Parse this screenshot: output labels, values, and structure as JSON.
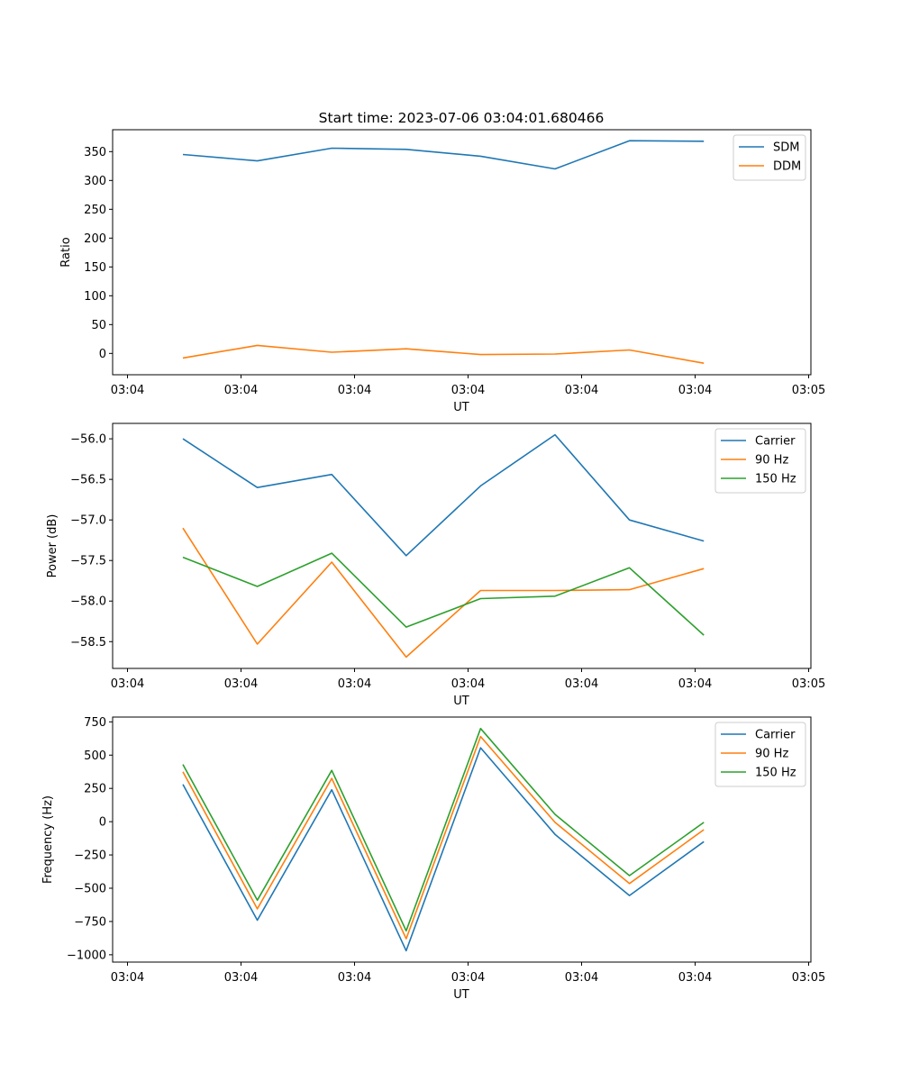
{
  "figure_title": "Start time: 2023-07-06 03:04:01.680466",
  "x_tick_labels": [
    "03:04",
    "03:04",
    "03:04",
    "03:04",
    "03:04",
    "03:04",
    "03:05"
  ],
  "colors": {
    "blue": "#1f77b4",
    "orange": "#ff7f0e",
    "green": "#2ca02c"
  },
  "chart_data": [
    {
      "type": "line",
      "xlabel": "UT",
      "ylabel": "Ratio",
      "ylim": [
        -37,
        388
      ],
      "yticks": [
        0,
        50,
        100,
        150,
        200,
        250,
        300,
        350
      ],
      "ytick_labels": [
        "0",
        "50",
        "100",
        "150",
        "200",
        "250",
        "300",
        "350"
      ],
      "legend_position": "upper-right",
      "x": [
        1,
        2,
        3,
        4,
        5,
        6,
        7,
        8
      ],
      "series": [
        {
          "name": "SDM",
          "color": "#1f77b4",
          "values": [
            345,
            334,
            356,
            354,
            342,
            320,
            369,
            368
          ]
        },
        {
          "name": "DDM",
          "color": "#ff7f0e",
          "values": [
            -8,
            14,
            2,
            8,
            -2,
            -1,
            6,
            -17
          ]
        }
      ]
    },
    {
      "type": "line",
      "xlabel": "UT",
      "ylabel": "Power (dB)",
      "ylim": [
        -58.83,
        -55.81
      ],
      "yticks": [
        -58.5,
        -58.0,
        -57.5,
        -57.0,
        -56.5,
        -56.0
      ],
      "ytick_labels": [
        "−58.5",
        "−58.0",
        "−57.5",
        "−57.0",
        "−56.5",
        "−56.0"
      ],
      "legend_position": "upper-right",
      "x": [
        1,
        2,
        3,
        4,
        5,
        6,
        7,
        8
      ],
      "series": [
        {
          "name": "Carrier",
          "color": "#1f77b4",
          "values": [
            -56.0,
            -56.6,
            -56.44,
            -57.44,
            -56.58,
            -55.95,
            -57.0,
            -57.26
          ]
        },
        {
          "name": "90 Hz",
          "color": "#ff7f0e",
          "values": [
            -57.1,
            -58.53,
            -57.52,
            -58.69,
            -57.87,
            -57.87,
            -57.86,
            -57.6
          ]
        },
        {
          "name": "150 Hz",
          "color": "#2ca02c",
          "values": [
            -57.46,
            -57.82,
            -57.41,
            -58.32,
            -57.97,
            -57.94,
            -57.59,
            -58.42
          ]
        }
      ]
    },
    {
      "type": "line",
      "xlabel": "UT",
      "ylabel": "Frequency (Hz)",
      "ylim": [
        -1055,
        786
      ],
      "yticks": [
        -1000,
        -750,
        -500,
        -250,
        0,
        250,
        500,
        750
      ],
      "ytick_labels": [
        "−1000",
        "−750",
        "−500",
        "−250",
        "0",
        "250",
        "500",
        "750"
      ],
      "legend_position": "upper-right",
      "x": [
        1,
        2,
        3,
        4,
        5,
        6,
        7,
        8
      ],
      "series": [
        {
          "name": "Carrier",
          "color": "#1f77b4",
          "values": [
            280,
            -740,
            240,
            -970,
            555,
            -95,
            -555,
            -150
          ]
        },
        {
          "name": "90 Hz",
          "color": "#ff7f0e",
          "values": [
            375,
            -655,
            325,
            -880,
            640,
            -5,
            -465,
            -60
          ]
        },
        {
          "name": "150 Hz",
          "color": "#2ca02c",
          "values": [
            430,
            -590,
            385,
            -820,
            700,
            55,
            -405,
            -5
          ]
        }
      ]
    }
  ]
}
